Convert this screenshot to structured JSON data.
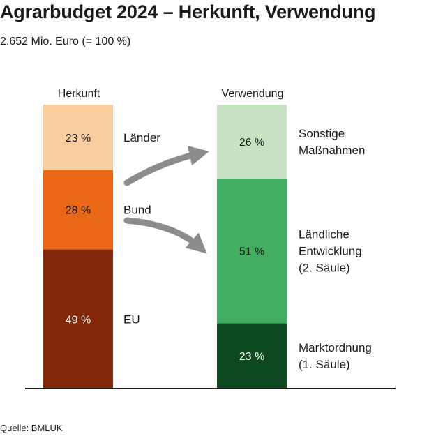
{
  "title": "Agrarbudget 2024 – Herkunft, Verwendung",
  "subtitle": "2.652 Mio. Euro (= 100 %)",
  "source": "Quelle: BMLUK",
  "chart_data": {
    "type": "bar",
    "stacked": true,
    "unit": "%",
    "total": "2.652 Mio. Euro",
    "categories": [
      "Herkunft",
      "Verwendung"
    ],
    "columns": [
      {
        "name": "Herkunft",
        "segments": [
          {
            "name": "EU",
            "value": 49,
            "label": "49 %",
            "text_lines": [
              "EU"
            ],
            "color": "#83290a",
            "text_color": "#ffffff"
          },
          {
            "name": "Bund",
            "value": 28,
            "label": "28 %",
            "text_lines": [
              "Bund"
            ],
            "color": "#ea6815",
            "text_color": "#1a1a1a"
          },
          {
            "name": "Länder",
            "value": 23,
            "label": "23 %",
            "text_lines": [
              "Länder"
            ],
            "color": "#f9cda0",
            "text_color": "#1a1a1a"
          }
        ]
      },
      {
        "name": "Verwendung",
        "segments": [
          {
            "name": "Marktordnung (1. Säule)",
            "value": 23,
            "label": "23 %",
            "text_lines": [
              "Marktordnung",
              "(1. Säule)"
            ],
            "color": "#0d4a1f",
            "text_color": "#ffffff"
          },
          {
            "name": "Ländliche Entwicklung (2. Säule)",
            "value": 51,
            "label": "51 %",
            "text_lines": [
              "Ländliche",
              "Entwicklung",
              "(2. Säule)"
            ],
            "color": "#41ae62",
            "text_color": "#1a1a1a"
          },
          {
            "name": "Sonstige Maßnahmen",
            "value": 26,
            "label": "26 %",
            "text_lines": [
              "Sonstige",
              "Maßnahmen"
            ],
            "color": "#c6e2c3",
            "text_color": "#1a1a1a"
          }
        ]
      }
    ],
    "arrow_color": "#8c8c8c",
    "axis_color": "#1a1a1a",
    "grid": false,
    "legend": "none"
  }
}
